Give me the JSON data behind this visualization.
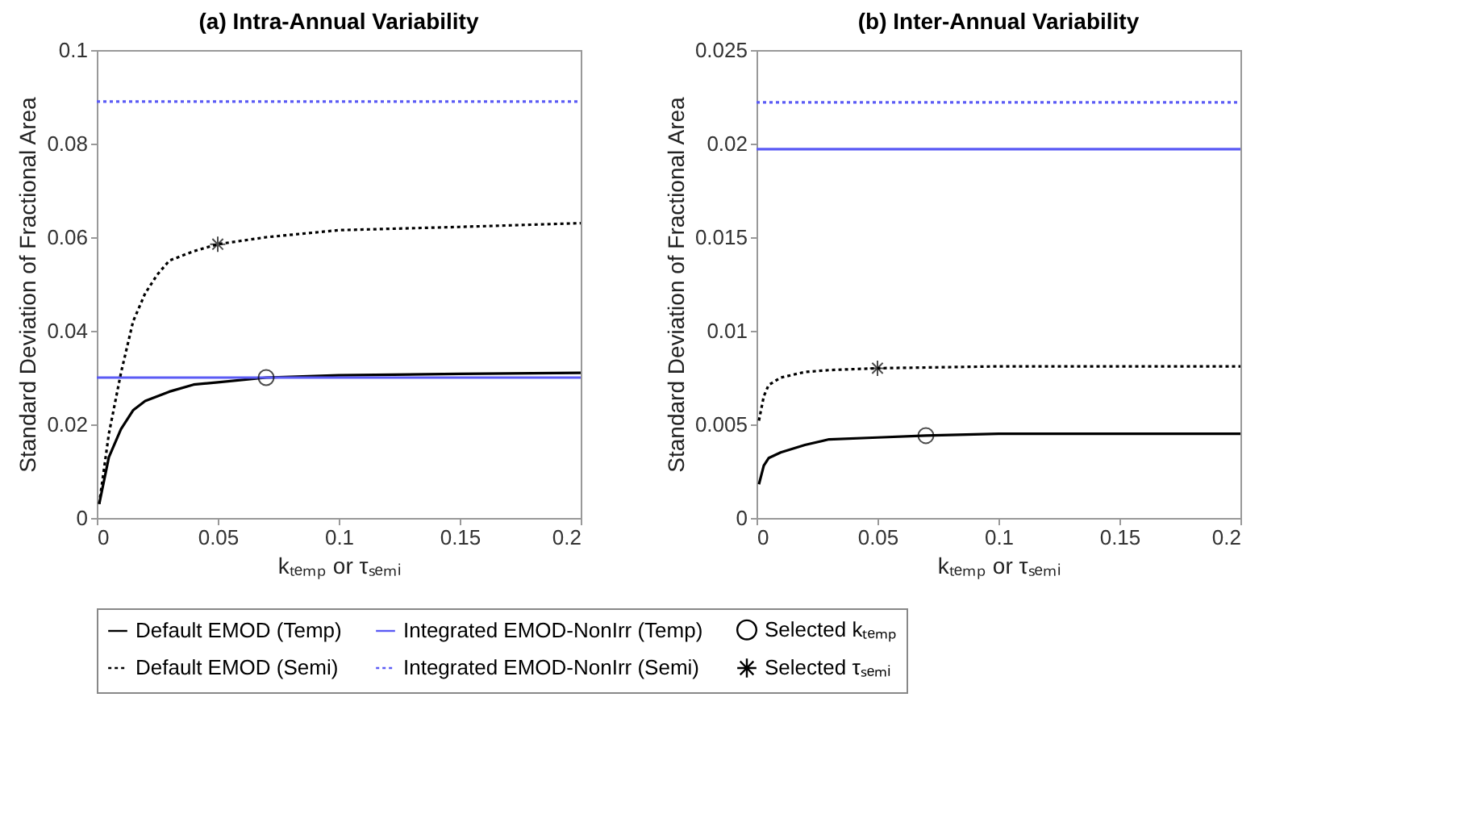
{
  "chart_data": [
    {
      "type": "line",
      "title": "(a) Intra-Annual Variability",
      "xlabel": "kₜₑₘₚ or τₛₑₘᵢ",
      "ylabel": "Standard Deviation of Fractional Area",
      "xlim": [
        0,
        0.2
      ],
      "xticks": [
        0,
        0.05,
        0.1,
        0.15,
        0.2
      ],
      "ylim": [
        0,
        0.1
      ],
      "yticks": [
        0,
        0.02,
        0.04,
        0.06,
        0.08,
        0.1
      ],
      "legend": "bottom",
      "grid": false,
      "series": [
        {
          "name": "Default EMOD (Temp)",
          "type": "line",
          "color": "#000000",
          "line_style": "solid",
          "marker": "none",
          "x": [
            0.001,
            0.005,
            0.01,
            0.015,
            0.02,
            0.03,
            0.04,
            0.05,
            0.07,
            0.1,
            0.15,
            0.2
          ],
          "values": [
            0.003,
            0.013,
            0.019,
            0.023,
            0.025,
            0.027,
            0.0285,
            0.029,
            0.03,
            0.0305,
            0.0308,
            0.031
          ]
        },
        {
          "name": "Integrated EMOD-NonIrr (Temp)",
          "type": "line",
          "color": "#5b5bf5",
          "line_style": "solid",
          "marker": "none",
          "x": [
            0,
            0.2
          ],
          "values": [
            0.03,
            0.03
          ]
        },
        {
          "name": "Selected kₜₑₘₚ",
          "type": "scatter",
          "color": "#000000",
          "marker": "circle",
          "x": [
            0.07
          ],
          "values": [
            0.03
          ]
        },
        {
          "name": "Default EMOD (Semi)",
          "type": "line",
          "color": "#000000",
          "line_style": "dotted",
          "marker": "none",
          "x": [
            0.001,
            0.005,
            0.01,
            0.015,
            0.02,
            0.025,
            0.03,
            0.04,
            0.05,
            0.07,
            0.1,
            0.15,
            0.2
          ],
          "values": [
            0.003,
            0.018,
            0.031,
            0.042,
            0.048,
            0.052,
            0.055,
            0.057,
            0.0585,
            0.06,
            0.0615,
            0.0622,
            0.063
          ]
        },
        {
          "name": "Integrated EMOD-NonIrr (Semi)",
          "type": "line",
          "color": "#5b5bf5",
          "line_style": "dotted",
          "marker": "none",
          "x": [
            0,
            0.2
          ],
          "values": [
            0.089,
            0.089
          ]
        },
        {
          "name": "Selected τₛₑₘᵢ",
          "type": "scatter",
          "color": "#000000",
          "marker": "cross",
          "x": [
            0.05
          ],
          "values": [
            0.0585
          ]
        }
      ]
    },
    {
      "type": "line",
      "title": "(b) Inter-Annual Variability",
      "xlabel": "kₜₑₘₚ or τₛₑₘᵢ",
      "ylabel": "Standard Deviation of Fractional Area",
      "xlim": [
        0,
        0.2
      ],
      "xticks": [
        0,
        0.05,
        0.1,
        0.15,
        0.2
      ],
      "ylim": [
        0,
        0.025
      ],
      "yticks": [
        0,
        0.005,
        0.01,
        0.015,
        0.02,
        0.025
      ],
      "legend": "bottom",
      "grid": false,
      "series": [
        {
          "name": "Default EMOD (Temp)",
          "type": "line",
          "color": "#000000",
          "line_style": "solid",
          "marker": "none",
          "x": [
            0.001,
            0.003,
            0.005,
            0.01,
            0.02,
            0.03,
            0.05,
            0.07,
            0.1,
            0.2
          ],
          "values": [
            0.0018,
            0.0028,
            0.0032,
            0.0035,
            0.0039,
            0.0042,
            0.0043,
            0.0044,
            0.0045,
            0.0045
          ]
        },
        {
          "name": "Integrated EMOD-NonIrr (Temp)",
          "type": "line",
          "color": "#5b5bf5",
          "line_style": "solid",
          "marker": "none",
          "x": [
            0,
            0.2
          ],
          "values": [
            0.0197,
            0.0197
          ]
        },
        {
          "name": "Selected kₜₑₘₚ",
          "type": "scatter",
          "color": "#000000",
          "marker": "circle",
          "x": [
            0.07
          ],
          "values": [
            0.0044
          ]
        },
        {
          "name": "Default EMOD (Semi)",
          "type": "line",
          "color": "#000000",
          "line_style": "dotted",
          "marker": "none",
          "x": [
            0.001,
            0.003,
            0.005,
            0.01,
            0.02,
            0.03,
            0.05,
            0.1,
            0.2
          ],
          "values": [
            0.0052,
            0.0065,
            0.0071,
            0.0075,
            0.0078,
            0.0079,
            0.008,
            0.0081,
            0.0081
          ]
        },
        {
          "name": "Integrated EMOD-NonIrr (Semi)",
          "type": "line",
          "color": "#5b5bf5",
          "line_style": "dotted",
          "marker": "none",
          "x": [
            0,
            0.2
          ],
          "values": [
            0.0222,
            0.0222
          ]
        },
        {
          "name": "Selected τₛₑₘᵢ",
          "type": "scatter",
          "color": "#000000",
          "marker": "cross",
          "x": [
            0.05
          ],
          "values": [
            0.008
          ]
        }
      ]
    }
  ]
}
